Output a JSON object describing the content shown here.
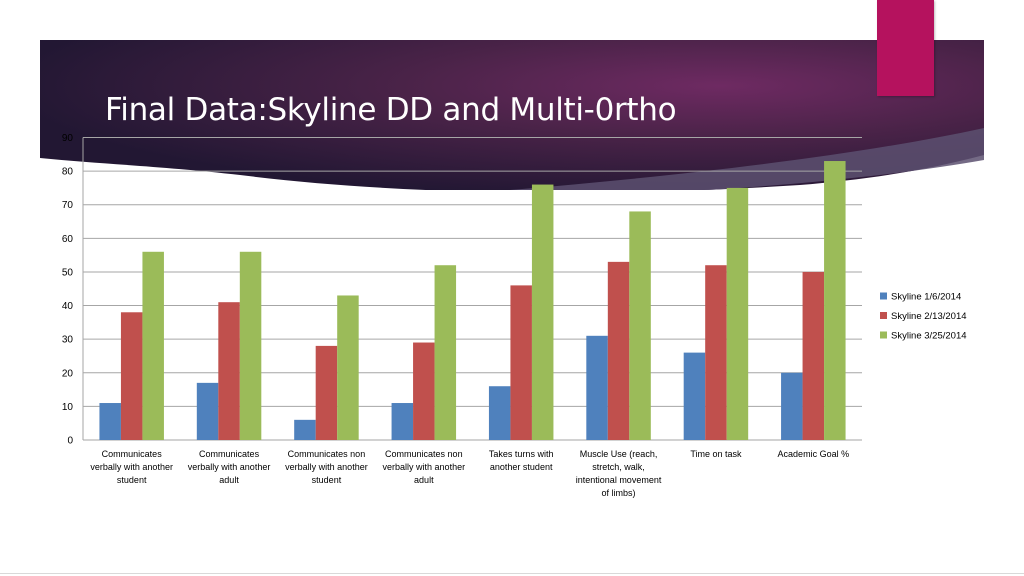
{
  "slide": {
    "title": "Final Data:Skyline DD and Multi-0rtho",
    "colors": {
      "banner_dark": "#231733",
      "banner_light": "#6e2a62",
      "tab": "#b5125e"
    }
  },
  "chart_data": {
    "type": "bar",
    "categories": [
      "Communicates verbally with another student",
      "Communicates verbally with another adult",
      "Communicates non verbally with another student",
      "Communicates non verbally with another adult",
      "Takes turns with another student",
      "Muscle Use (reach, stretch, walk, intentional movement of limbs)",
      "Time on task",
      "Academic Goal %"
    ],
    "category_label_lines": [
      [
        "Communicates",
        "verbally with another",
        "student"
      ],
      [
        "Communicates",
        "verbally with another",
        "adult"
      ],
      [
        "Communicates non",
        "verbally with another",
        "student"
      ],
      [
        "Communicates non",
        "verbally with another",
        "adult"
      ],
      [
        "Takes turns with",
        "another student"
      ],
      [
        "Muscle Use (reach,",
        "stretch, walk,",
        "intentional movement",
        "of limbs)"
      ],
      [
        "Time on task"
      ],
      [
        "Academic Goal %"
      ]
    ],
    "series": [
      {
        "name": "Skyline 1/6/2014",
        "color": "#4f81bd",
        "values": [
          11,
          17,
          6,
          11,
          16,
          31,
          26,
          20
        ]
      },
      {
        "name": "Skyline 2/13/2014",
        "color": "#c0504d",
        "values": [
          38,
          41,
          28,
          29,
          46,
          53,
          52,
          50
        ]
      },
      {
        "name": "Skyline 3/25/2014",
        "color": "#9bbb59",
        "values": [
          56,
          56,
          43,
          52,
          76,
          68,
          75,
          83
        ]
      }
    ],
    "ylim": [
      0,
      90
    ],
    "yticks": [
      0,
      10,
      20,
      30,
      40,
      50,
      60,
      70,
      80,
      90
    ],
    "grid": true,
    "legend_position": "right"
  }
}
